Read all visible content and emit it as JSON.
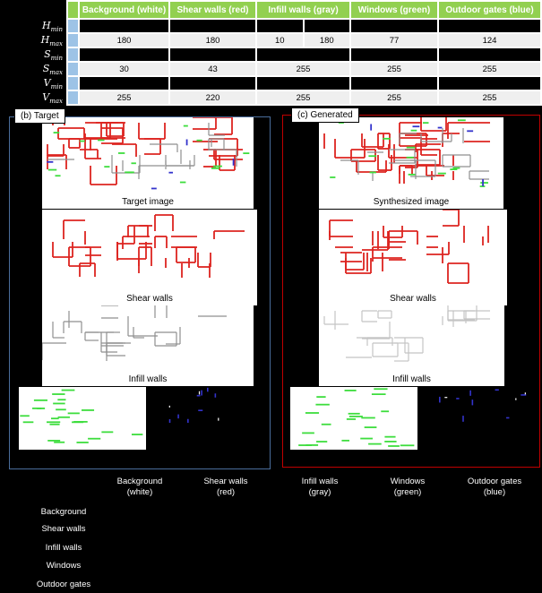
{
  "table": {
    "columns": [
      "Background (white)",
      "Shear walls (red)",
      "Infill walls (gray)",
      "Windows (green)",
      "Outdoor gates (blue)"
    ],
    "rows": [
      {
        "label": "H",
        "sub": "min",
        "background": "",
        "shear": "",
        "infill_a": "",
        "infill_b": "",
        "windows": "",
        "gates": ""
      },
      {
        "label": "H",
        "sub": "max",
        "background": "180",
        "shear": "180",
        "infill_a": "10",
        "infill_b": "180",
        "windows": "77",
        "gates": "124"
      },
      {
        "label": "S",
        "sub": "min",
        "background": "",
        "shear": "",
        "infill": "",
        "windows": "",
        "gates": ""
      },
      {
        "label": "S",
        "sub": "max",
        "background": "30",
        "shear": "43",
        "infill": "255",
        "windows": "255",
        "gates": "255"
      },
      {
        "label": "V",
        "sub": "min",
        "background": "",
        "shear": "",
        "infill": "",
        "windows": "",
        "gates": ""
      },
      {
        "label": "V",
        "sub": "max",
        "background": "255",
        "shear": "220",
        "infill": "255",
        "windows": "255",
        "gates": "255"
      }
    ]
  },
  "panel_b": {
    "title": "(b) Target",
    "image1_label": "Target image",
    "image2_label": "Shear walls",
    "image3_label": "Infill walls"
  },
  "panel_c": {
    "title": "(c) Generated",
    "image1_label": "Synthesized image",
    "image2_label": "Shear walls",
    "image3_label": "Infill walls"
  },
  "bottom_legend": [
    {
      "line1": "Background",
      "line2": "(white)"
    },
    {
      "line1": "Shear walls",
      "line2": "(red)"
    },
    {
      "line1": "Infill walls",
      "line2": "(gray)"
    },
    {
      "line1": "Windows",
      "line2": "(green)"
    },
    {
      "line1": "Outdoor gates",
      "line2": "(blue)"
    }
  ],
  "side_legend": [
    "Background",
    "Shear walls",
    "Infill walls",
    "Windows",
    "Outdoor gates"
  ],
  "colors": {
    "header_green": "#92d050",
    "strip_blue": "#9dc3e6",
    "light_row": "#efefef",
    "panel_b_border": "#4a6d9b",
    "panel_c_border": "#c00000",
    "wall_red": "#dd2420",
    "infill_gray": "#8f8f8f",
    "infill_gray_light": "#c4c4c4",
    "window_green": "#3ddd3d",
    "gate_blue": "#3333cc"
  }
}
